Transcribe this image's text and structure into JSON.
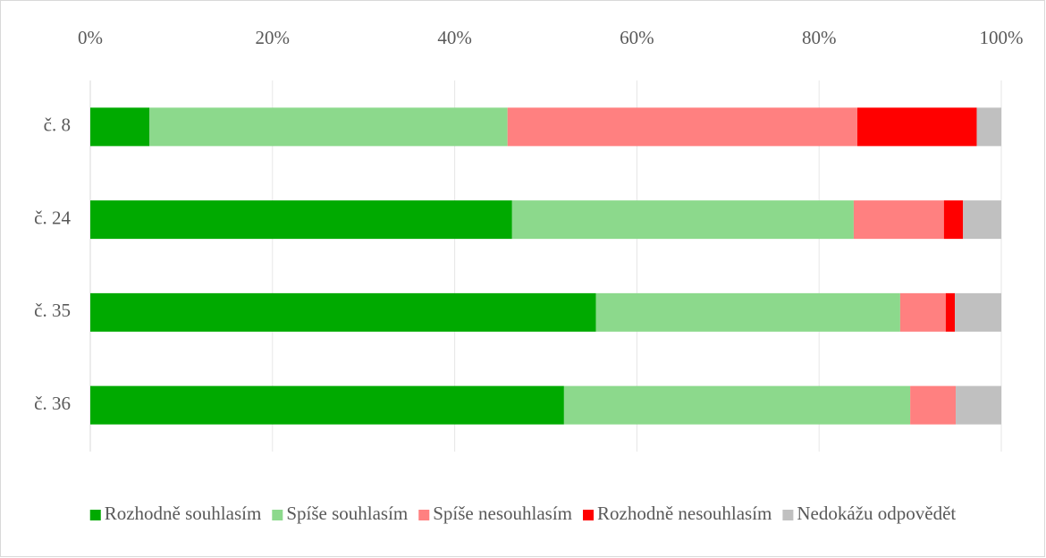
{
  "chart_data": {
    "type": "stacked-bar-horizontal",
    "categories": [
      "č. 8",
      "č. 24",
      "č. 35",
      "č. 36"
    ],
    "series": [
      {
        "name": "Rozhodně souhlasím",
        "color": "#00aa00",
        "values": [
          6.5,
          46.3,
          55.5,
          52.0
        ]
      },
      {
        "name": "Spíše souhlasím",
        "color": "#8cd98c",
        "values": [
          39.3,
          37.5,
          33.4,
          38.0
        ]
      },
      {
        "name": "Spíše nesouhlasím",
        "color": "#ff8080",
        "values": [
          38.4,
          9.9,
          5.0,
          5.0
        ]
      },
      {
        "name": "Rozhodně nesouhlasím",
        "color": "#ff0000",
        "values": [
          13.1,
          2.1,
          1.0,
          0
        ]
      },
      {
        "name": "Nedokážu odpovědět",
        "color": "#c0c0c0",
        "values": [
          2.7,
          4.2,
          5.1,
          5.0
        ]
      }
    ],
    "xlim": [
      0,
      100
    ],
    "xticks": [
      {
        "value": 0,
        "label": "0%"
      },
      {
        "value": 20,
        "label": "20%"
      },
      {
        "value": 40,
        "label": "40%"
      },
      {
        "value": 60,
        "label": "60%"
      },
      {
        "value": 80,
        "label": "80%"
      },
      {
        "value": 100,
        "label": "100%"
      }
    ],
    "grid": true,
    "legend": "bottom"
  }
}
